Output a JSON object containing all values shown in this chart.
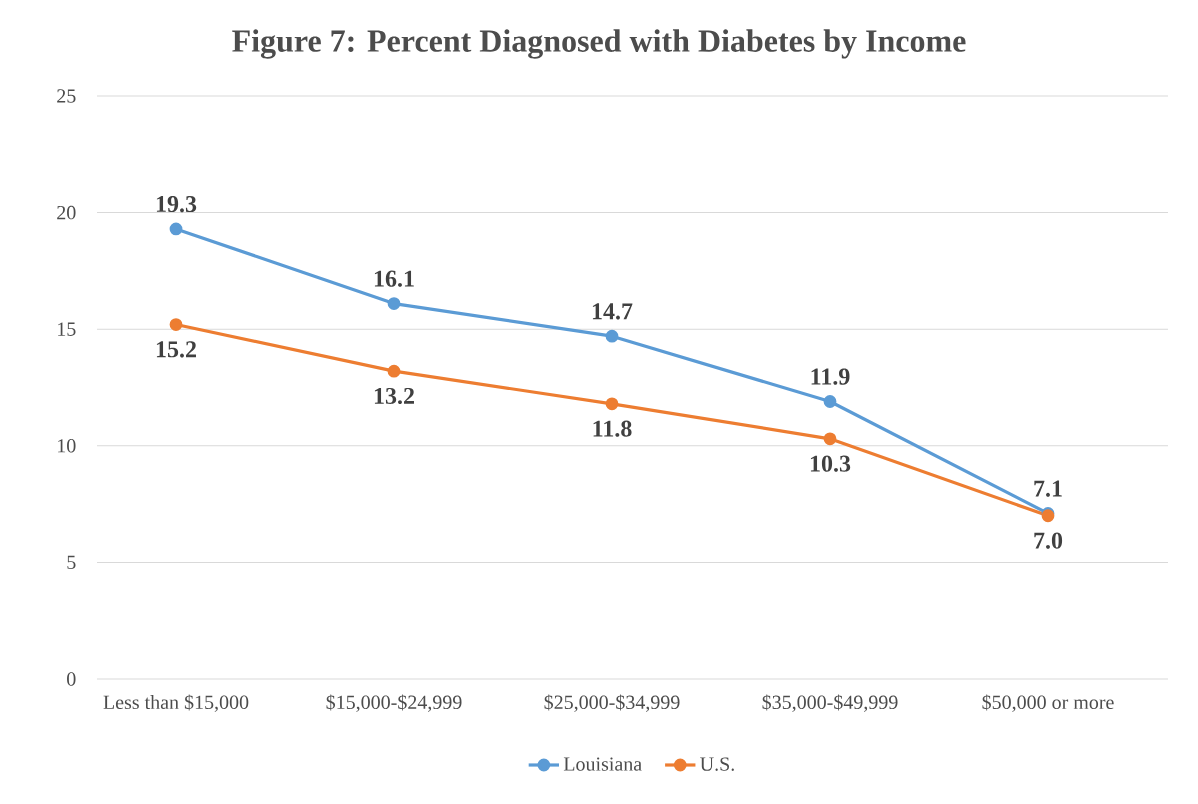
{
  "chart_data": {
    "type": "line",
    "title": "Figure 7: Percent Diagnosed with Diabetes by Income",
    "categories": [
      "Less than $15,000",
      "$15,000-$24,999",
      "$25,000-$34,999",
      "$35,000-$49,999",
      "$50,000 or more"
    ],
    "series": [
      {
        "name": "Louisiana",
        "color": "#5b9bd5",
        "values": [
          19.3,
          16.1,
          14.7,
          11.9,
          7.1
        ],
        "value_labels": [
          "19.3",
          "16.1",
          "14.7",
          "11.9",
          "7.1"
        ]
      },
      {
        "name": "U.S.",
        "color": "#ed7d31",
        "values": [
          15.2,
          13.2,
          11.8,
          10.3,
          7.0
        ],
        "value_labels": [
          "15.2",
          "13.2",
          "11.8",
          "10.3",
          "7.0"
        ]
      }
    ],
    "ylim": [
      0,
      25
    ],
    "yticks": [
      0,
      5,
      10,
      15,
      20,
      25
    ],
    "grid": "y",
    "legend": "bottom",
    "marker": "circle",
    "line_style": "solid"
  }
}
